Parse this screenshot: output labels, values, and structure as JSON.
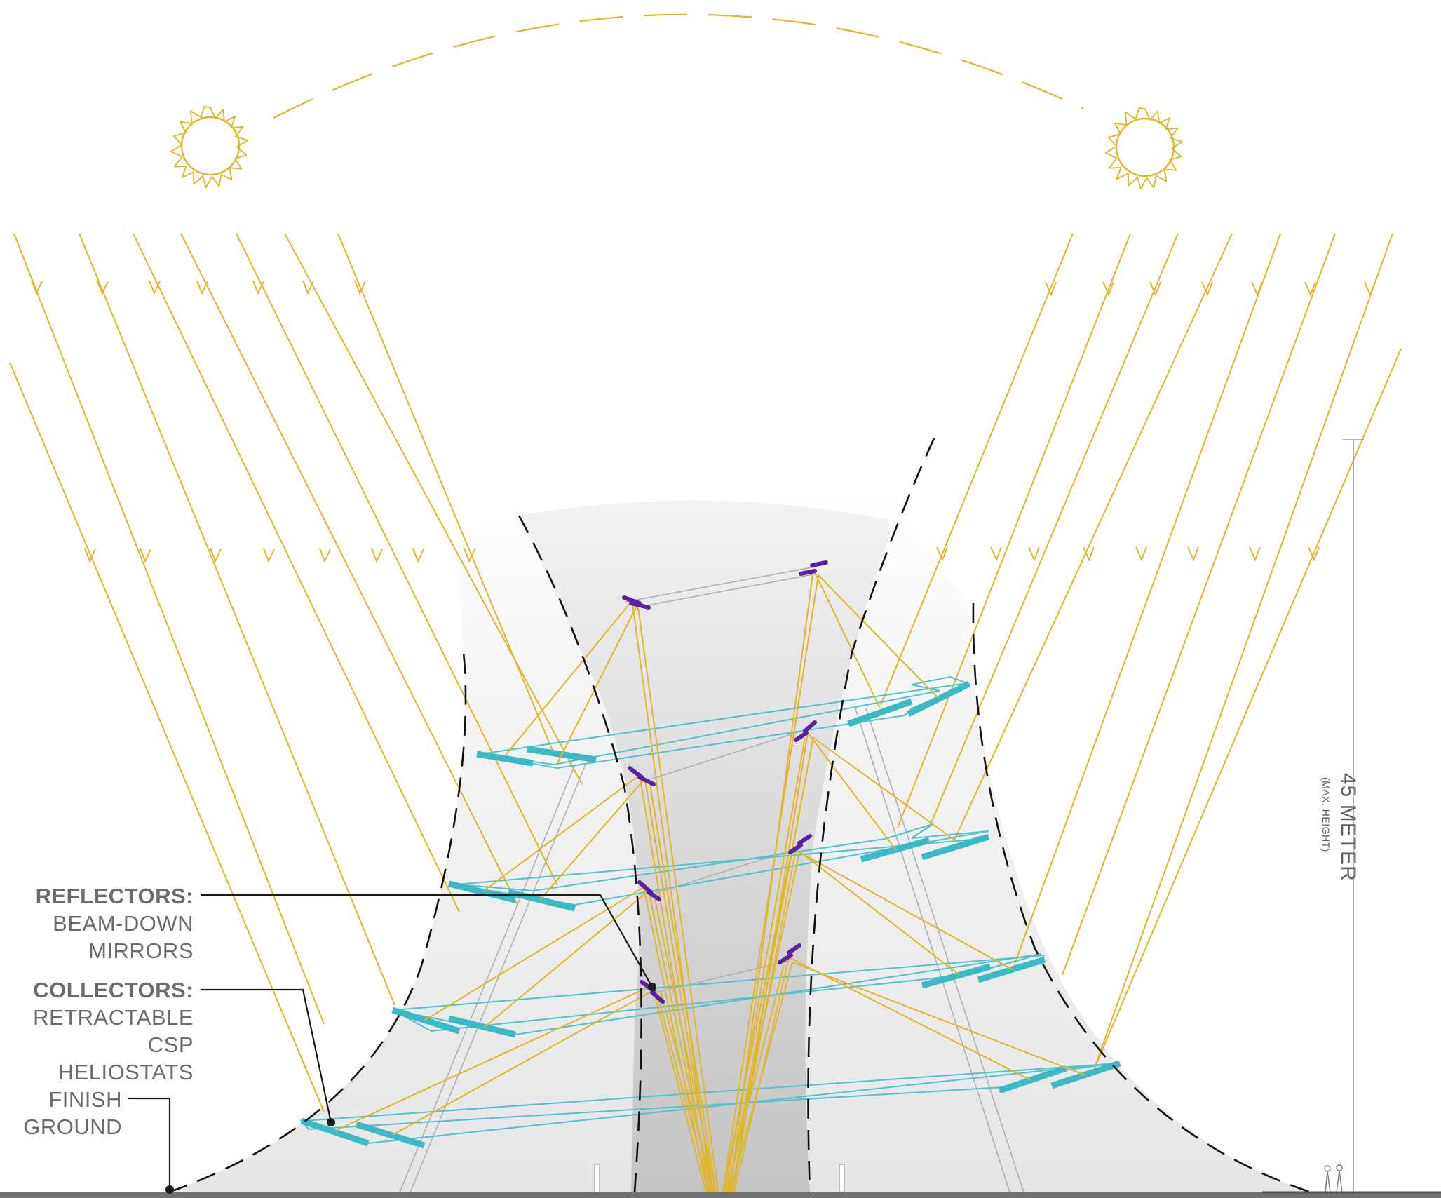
{
  "labels": {
    "reflectors_title": "REFLECTORS:",
    "reflectors_line1": "BEAM-DOWN",
    "reflectors_line2": "MIRRORS",
    "collectors_title": "COLLECTORS:",
    "collectors_line1": "RETRACTABLE",
    "collectors_line2": "CSP HELIOSTATS",
    "finish_line1": "FINISH",
    "finish_line2": "GROUND",
    "height_main": "45 METER",
    "height_sub": "(MAX. HEIGHT)"
  },
  "colors": {
    "sunlight": "#e2b62b",
    "sun": "#e2b62b",
    "heliostat": "#3bb9c7",
    "heliostat_frame": "#5cc4d0",
    "reflector": "#5a1fa3",
    "structure_line": "#b5b5b5",
    "profile_dash": "#111111",
    "ground": "#707070",
    "text": "#6b6b6b"
  },
  "icons": [
    "sun-icon-left",
    "sun-icon-right",
    "human-figure-icon"
  ]
}
